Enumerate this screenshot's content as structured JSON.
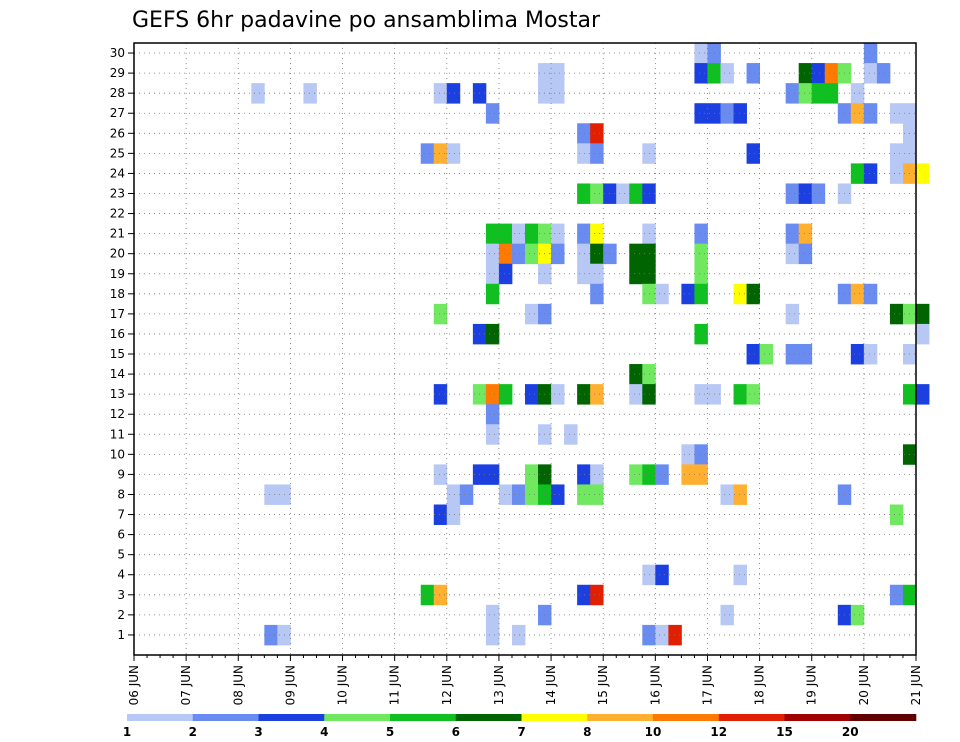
{
  "chart_data": {
    "type": "heatmap",
    "title": "GEFS 6hr padavine po ansamblima Mostar",
    "xlabel": "",
    "ylabel": "",
    "x_tick_labels": [
      "06 JUN",
      "07 JUN",
      "08 JUN",
      "09 JUN",
      "10 JUN",
      "11 JUN",
      "12 JUN",
      "13 JUN",
      "14 JUN",
      "15 JUN",
      "16 JUN",
      "17 JUN",
      "18 JUN",
      "19 JUN",
      "20 JUN",
      "21 JUN"
    ],
    "xlim": [
      "06 JUN 00Z",
      "21 JUN 00Z"
    ],
    "time_step_hours": 6,
    "y_tick_labels": [
      "1",
      "2",
      "3",
      "4",
      "5",
      "6",
      "7",
      "8",
      "9",
      "10",
      "11",
      "12",
      "13",
      "14",
      "15",
      "16",
      "17",
      "18",
      "19",
      "20",
      "21",
      "22",
      "23",
      "24",
      "25",
      "26",
      "27",
      "28",
      "29",
      "30"
    ],
    "ylim": [
      0,
      30
    ],
    "grid": true,
    "legend_placement": "bottom",
    "legend_thresholds": [
      "1",
      "2",
      "3",
      "4",
      "5",
      "6",
      "7",
      "8",
      "10",
      "12",
      "15",
      "20"
    ],
    "colors": [
      "#b8c8f5",
      "#6a8cf0",
      "#1c40e0",
      "#70e860",
      "#10c020",
      "#006400",
      "#ffff00",
      "#ffb030",
      "#ff7a00",
      "#e02000",
      "#a00000",
      "#600000"
    ],
    "cells": [
      [
        "16 JUN 18Z",
        30,
        1
      ],
      [
        "17 JUN 00Z",
        30,
        2
      ],
      [
        "20 JUN 00Z",
        30,
        2
      ],
      [
        "16 JUN 18Z",
        29,
        3
      ],
      [
        "17 JUN 00Z",
        29,
        5
      ],
      [
        "17 JUN 06Z",
        29,
        1
      ],
      [
        "17 JUN 18Z",
        29,
        2
      ],
      [
        "18 JUN 18Z",
        29,
        6
      ],
      [
        "19 JUN 00Z",
        29,
        3
      ],
      [
        "19 JUN 06Z",
        29,
        9
      ],
      [
        "19 JUN 12Z",
        29,
        4
      ],
      [
        "20 JUN 00Z",
        29,
        1
      ],
      [
        "20 JUN 06Z",
        29,
        2
      ],
      [
        "13 JUN 18Z",
        29,
        1
      ],
      [
        "14 JUN 00Z",
        29,
        1
      ],
      [
        "08 JUN 06Z",
        28,
        1
      ],
      [
        "09 JUN 06Z",
        28,
        1
      ],
      [
        "11 JUN 18Z",
        28,
        1
      ],
      [
        "12 JUN 00Z",
        28,
        3
      ],
      [
        "12 JUN 12Z",
        28,
        3
      ],
      [
        "13 JUN 18Z",
        28,
        1
      ],
      [
        "14 JUN 00Z",
        28,
        1
      ],
      [
        "18 JUN 12Z",
        28,
        2
      ],
      [
        "18 JUN 18Z",
        28,
        4
      ],
      [
        "19 JUN 00Z",
        28,
        5
      ],
      [
        "19 JUN 06Z",
        28,
        5
      ],
      [
        "19 JUN 18Z",
        28,
        1
      ],
      [
        "12 JUN 18Z",
        27,
        2
      ],
      [
        "16 JUN 18Z",
        27,
        3
      ],
      [
        "17 JUN 00Z",
        27,
        3
      ],
      [
        "17 JUN 06Z",
        27,
        2
      ],
      [
        "17 JUN 12Z",
        27,
        3
      ],
      [
        "19 JUN 12Z",
        27,
        2
      ],
      [
        "19 JUN 18Z",
        27,
        8
      ],
      [
        "20 JUN 00Z",
        27,
        2
      ],
      [
        "20 JUN 12Z",
        27,
        1
      ],
      [
        "20 JUN 18Z",
        27,
        1
      ],
      [
        "14 JUN 12Z",
        26,
        2
      ],
      [
        "14 JUN 18Z",
        26,
        10
      ],
      [
        "20 JUN 18Z",
        26,
        1
      ],
      [
        "11 JUN 12Z",
        25,
        2
      ],
      [
        "11 JUN 18Z",
        25,
        8
      ],
      [
        "12 JUN 00Z",
        25,
        1
      ],
      [
        "14 JUN 12Z",
        25,
        1
      ],
      [
        "14 JUN 18Z",
        25,
        2
      ],
      [
        "15 JUN 18Z",
        25,
        1
      ],
      [
        "17 JUN 18Z",
        25,
        3
      ],
      [
        "20 JUN 12Z",
        25,
        1
      ],
      [
        "20 JUN 18Z",
        25,
        1
      ],
      [
        "19 JUN 18Z",
        24,
        5
      ],
      [
        "20 JUN 00Z",
        24,
        3
      ],
      [
        "20 JUN 12Z",
        24,
        1
      ],
      [
        "20 JUN 18Z",
        24,
        8
      ],
      [
        "21 JUN 00Z",
        24,
        7
      ],
      [
        "14 JUN 12Z",
        23,
        5
      ],
      [
        "14 JUN 18Z",
        23,
        4
      ],
      [
        "15 JUN 00Z",
        23,
        3
      ],
      [
        "15 JUN 06Z",
        23,
        1
      ],
      [
        "15 JUN 12Z",
        23,
        5
      ],
      [
        "15 JUN 18Z",
        23,
        3
      ],
      [
        "18 JUN 12Z",
        23,
        2
      ],
      [
        "18 JUN 18Z",
        23,
        3
      ],
      [
        "19 JUN 00Z",
        23,
        2
      ],
      [
        "19 JUN 12Z",
        23,
        1
      ],
      [
        "12 JUN 18Z",
        21,
        5
      ],
      [
        "13 JUN 00Z",
        21,
        5
      ],
      [
        "13 JUN 06Z",
        21,
        1
      ],
      [
        "13 JUN 12Z",
        21,
        5
      ],
      [
        "13 JUN 18Z",
        21,
        4
      ],
      [
        "14 JUN 00Z",
        21,
        1
      ],
      [
        "14 JUN 12Z",
        21,
        2
      ],
      [
        "14 JUN 18Z",
        21,
        7
      ],
      [
        "15 JUN 18Z",
        21,
        1
      ],
      [
        "16 JUN 18Z",
        21,
        2
      ],
      [
        "18 JUN 12Z",
        21,
        2
      ],
      [
        "18 JUN 18Z",
        21,
        8
      ],
      [
        "12 JUN 18Z",
        20,
        1
      ],
      [
        "13 JUN 00Z",
        20,
        9
      ],
      [
        "13 JUN 06Z",
        20,
        2
      ],
      [
        "13 JUN 12Z",
        20,
        4
      ],
      [
        "13 JUN 18Z",
        20,
        7
      ],
      [
        "14 JUN 00Z",
        20,
        2
      ],
      [
        "14 JUN 12Z",
        20,
        1
      ],
      [
        "14 JUN 18Z",
        20,
        6
      ],
      [
        "15 JUN 00Z",
        20,
        2
      ],
      [
        "15 JUN 12Z",
        20,
        6
      ],
      [
        "15 JUN 18Z",
        20,
        6
      ],
      [
        "16 JUN 18Z",
        20,
        4
      ],
      [
        "18 JUN 12Z",
        20,
        1
      ],
      [
        "18 JUN 18Z",
        20,
        2
      ],
      [
        "12 JUN 18Z",
        19,
        1
      ],
      [
        "13 JUN 00Z",
        19,
        3
      ],
      [
        "13 JUN 18Z",
        19,
        1
      ],
      [
        "14 JUN 12Z",
        19,
        1
      ],
      [
        "14 JUN 18Z",
        19,
        1
      ],
      [
        "15 JUN 12Z",
        19,
        6
      ],
      [
        "15 JUN 18Z",
        19,
        6
      ],
      [
        "16 JUN 18Z",
        19,
        4
      ],
      [
        "12 JUN 18Z",
        18,
        5
      ],
      [
        "14 JUN 18Z",
        18,
        2
      ],
      [
        "15 JUN 18Z",
        18,
        4
      ],
      [
        "16 JUN 00Z",
        18,
        1
      ],
      [
        "16 JUN 12Z",
        18,
        3
      ],
      [
        "16 JUN 18Z",
        18,
        5
      ],
      [
        "17 JUN 12Z",
        18,
        7
      ],
      [
        "17 JUN 18Z",
        18,
        6
      ],
      [
        "19 JUN 12Z",
        18,
        2
      ],
      [
        "19 JUN 18Z",
        18,
        8
      ],
      [
        "20 JUN 00Z",
        18,
        2
      ],
      [
        "11 JUN 18Z",
        17,
        4
      ],
      [
        "13 JUN 12Z",
        17,
        1
      ],
      [
        "13 JUN 18Z",
        17,
        2
      ],
      [
        "18 JUN 12Z",
        17,
        1
      ],
      [
        "20 JUN 12Z",
        17,
        6
      ],
      [
        "20 JUN 18Z",
        17,
        4
      ],
      [
        "21 JUN 00Z",
        17,
        6
      ],
      [
        "12 JUN 12Z",
        16,
        3
      ],
      [
        "12 JUN 18Z",
        16,
        6
      ],
      [
        "16 JUN 18Z",
        16,
        5
      ],
      [
        "21 JUN 00Z",
        16,
        1
      ],
      [
        "17 JUN 18Z",
        15,
        3
      ],
      [
        "18 JUN 00Z",
        15,
        4
      ],
      [
        "18 JUN 12Z",
        15,
        2
      ],
      [
        "18 JUN 18Z",
        15,
        2
      ],
      [
        "19 JUN 18Z",
        15,
        3
      ],
      [
        "20 JUN 00Z",
        15,
        1
      ],
      [
        "20 JUN 18Z",
        15,
        1
      ],
      [
        "15 JUN 12Z",
        14,
        6
      ],
      [
        "15 JUN 18Z",
        14,
        4
      ],
      [
        "11 JUN 18Z",
        13,
        3
      ],
      [
        "12 JUN 12Z",
        13,
        4
      ],
      [
        "12 JUN 18Z",
        13,
        9
      ],
      [
        "13 JUN 00Z",
        13,
        5
      ],
      [
        "13 JUN 12Z",
        13,
        3
      ],
      [
        "13 JUN 18Z",
        13,
        6
      ],
      [
        "14 JUN 00Z",
        13,
        1
      ],
      [
        "14 JUN 12Z",
        13,
        6
      ],
      [
        "14 JUN 18Z",
        13,
        8
      ],
      [
        "15 JUN 12Z",
        13,
        1
      ],
      [
        "15 JUN 18Z",
        13,
        6
      ],
      [
        "16 JUN 18Z",
        13,
        1
      ],
      [
        "17 JUN 00Z",
        13,
        1
      ],
      [
        "17 JUN 12Z",
        13,
        5
      ],
      [
        "17 JUN 18Z",
        13,
        4
      ],
      [
        "20 JUN 18Z",
        13,
        5
      ],
      [
        "21 JUN 00Z",
        13,
        3
      ],
      [
        "12 JUN 18Z",
        12,
        2
      ],
      [
        "12 JUN 18Z",
        11,
        1
      ],
      [
        "13 JUN 18Z",
        11,
        1
      ],
      [
        "14 JUN 06Z",
        11,
        1
      ],
      [
        "16 JUN 12Z",
        10,
        1
      ],
      [
        "16 JUN 18Z",
        10,
        2
      ],
      [
        "20 JUN 18Z",
        10,
        6
      ],
      [
        "11 JUN 18Z",
        9,
        1
      ],
      [
        "12 JUN 12Z",
        9,
        3
      ],
      [
        "12 JUN 18Z",
        9,
        3
      ],
      [
        "13 JUN 12Z",
        9,
        4
      ],
      [
        "13 JUN 18Z",
        9,
        6
      ],
      [
        "14 JUN 12Z",
        9,
        3
      ],
      [
        "14 JUN 18Z",
        9,
        1
      ],
      [
        "15 JUN 12Z",
        9,
        4
      ],
      [
        "15 JUN 18Z",
        9,
        5
      ],
      [
        "16 JUN 00Z",
        9,
        2
      ],
      [
        "16 JUN 12Z",
        9,
        8
      ],
      [
        "16 JUN 18Z",
        9,
        8
      ],
      [
        "08 JUN 12Z",
        8,
        1
      ],
      [
        "08 JUN 18Z",
        8,
        1
      ],
      [
        "12 JUN 00Z",
        8,
        1
      ],
      [
        "12 JUN 06Z",
        8,
        2
      ],
      [
        "13 JUN 00Z",
        8,
        1
      ],
      [
        "13 JUN 06Z",
        8,
        2
      ],
      [
        "13 JUN 12Z",
        8,
        4
      ],
      [
        "13 JUN 18Z",
        8,
        5
      ],
      [
        "14 JUN 00Z",
        8,
        3
      ],
      [
        "14 JUN 12Z",
        8,
        4
      ],
      [
        "14 JUN 18Z",
        8,
        4
      ],
      [
        "17 JUN 06Z",
        8,
        1
      ],
      [
        "17 JUN 12Z",
        8,
        8
      ],
      [
        "19 JUN 12Z",
        8,
        2
      ],
      [
        "11 JUN 18Z",
        7,
        3
      ],
      [
        "12 JUN 00Z",
        7,
        1
      ],
      [
        "20 JUN 12Z",
        7,
        4
      ],
      [
        "15 JUN 18Z",
        4,
        1
      ],
      [
        "16 JUN 00Z",
        4,
        3
      ],
      [
        "17 JUN 12Z",
        4,
        1
      ],
      [
        "11 JUN 12Z",
        3,
        5
      ],
      [
        "11 JUN 18Z",
        3,
        8
      ],
      [
        "14 JUN 12Z",
        3,
        3
      ],
      [
        "14 JUN 18Z",
        3,
        10
      ],
      [
        "20 JUN 12Z",
        3,
        2
      ],
      [
        "20 JUN 18Z",
        3,
        5
      ],
      [
        "12 JUN 18Z",
        2,
        1
      ],
      [
        "13 JUN 18Z",
        2,
        2
      ],
      [
        "17 JUN 06Z",
        2,
        1
      ],
      [
        "19 JUN 12Z",
        2,
        3
      ],
      [
        "19 JUN 18Z",
        2,
        4
      ],
      [
        "08 JUN 12Z",
        1,
        2
      ],
      [
        "08 JUN 18Z",
        1,
        1
      ],
      [
        "12 JUN 18Z",
        1,
        1
      ],
      [
        "13 JUN 06Z",
        1,
        1
      ],
      [
        "15 JUN 18Z",
        1,
        2
      ],
      [
        "16 JUN 00Z",
        1,
        1
      ],
      [
        "16 JUN 06Z",
        1,
        10
      ]
    ]
  }
}
